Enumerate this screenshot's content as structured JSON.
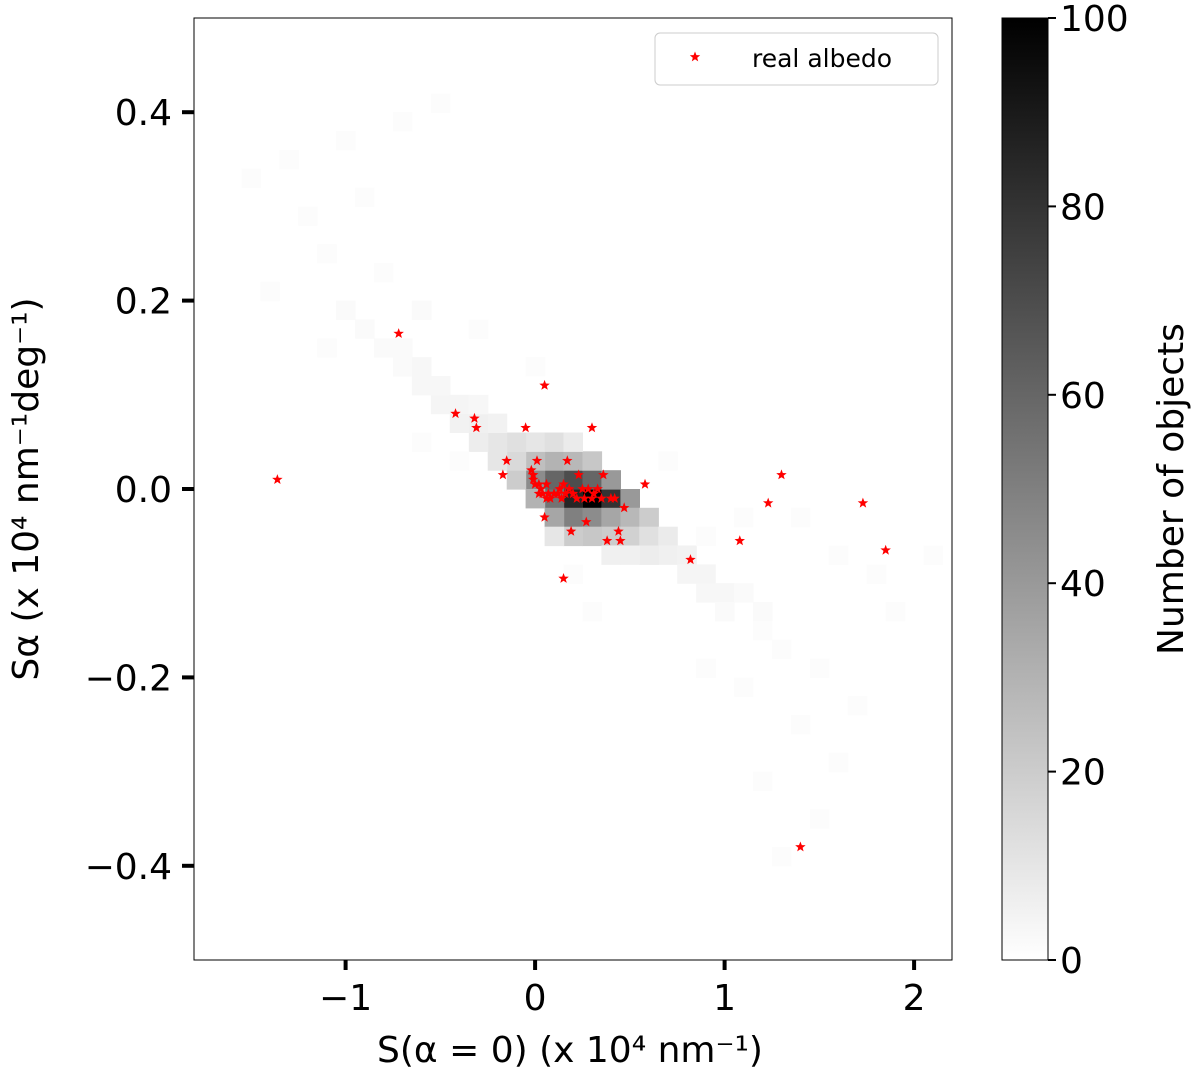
{
  "chart_data": {
    "type": "heatmap",
    "heatmap_description": "2D histogram (grayscale counts) with overlaid scatter of red star markers",
    "xlim": [
      -1.8,
      2.2
    ],
    "ylim": [
      -0.5,
      0.5
    ],
    "xticks": [
      -1,
      0,
      1,
      2
    ],
    "xtick_labels": [
      "−1",
      "0",
      "1",
      "2"
    ],
    "yticks": [
      0.4,
      0.2,
      0.0,
      -0.2,
      -0.4
    ],
    "ytick_labels": [
      "0.4",
      "0.2",
      "0.0",
      "−0.2",
      "−0.4"
    ],
    "xlabel": "S(α = 0)  (x 10⁴ nm⁻¹)",
    "ylabel": "Sα (x 10⁴ nm⁻¹deg⁻¹)",
    "colorbar": {
      "label": "Number of objects",
      "range": [
        0,
        100
      ],
      "ticks": [
        0,
        20,
        40,
        60,
        80,
        100
      ],
      "tick_labels": [
        "0",
        "20",
        "40",
        "60",
        "80",
        "100"
      ],
      "colormap": "gray_r"
    },
    "legend": {
      "placement": "upper right",
      "entries": [
        "real albedo"
      ]
    },
    "marker_color": "#ff0000",
    "histogram_bins": [
      {
        "x": 0.3,
        "y": -0.01,
        "count": 100
      },
      {
        "x": 0.2,
        "y": -0.01,
        "count": 85
      },
      {
        "x": 0.4,
        "y": -0.01,
        "count": 80
      },
      {
        "x": 0.2,
        "y": 0.01,
        "count": 70
      },
      {
        "x": 0.3,
        "y": 0.01,
        "count": 60
      },
      {
        "x": 0.1,
        "y": -0.01,
        "count": 55
      },
      {
        "x": 0.1,
        "y": 0.01,
        "count": 60
      },
      {
        "x": 0.0,
        "y": 0.01,
        "count": 45
      },
      {
        "x": 0.4,
        "y": 0.01,
        "count": 40
      },
      {
        "x": 0.2,
        "y": -0.03,
        "count": 50
      },
      {
        "x": 0.3,
        "y": -0.03,
        "count": 45
      },
      {
        "x": 0.1,
        "y": -0.03,
        "count": 35
      },
      {
        "x": 0.4,
        "y": -0.03,
        "count": 35
      },
      {
        "x": 0.5,
        "y": -0.01,
        "count": 40
      },
      {
        "x": 0.1,
        "y": 0.03,
        "count": 30
      },
      {
        "x": 0.2,
        "y": 0.03,
        "count": 28
      },
      {
        "x": 0.3,
        "y": 0.03,
        "count": 22
      },
      {
        "x": 0.0,
        "y": 0.03,
        "count": 25
      },
      {
        "x": -0.1,
        "y": 0.01,
        "count": 20
      },
      {
        "x": -0.1,
        "y": 0.03,
        "count": 15
      },
      {
        "x": -0.2,
        "y": 0.03,
        "count": 10
      },
      {
        "x": 0.0,
        "y": -0.01,
        "count": 30
      },
      {
        "x": 0.5,
        "y": -0.03,
        "count": 28
      },
      {
        "x": 0.6,
        "y": -0.03,
        "count": 20
      },
      {
        "x": 0.5,
        "y": -0.05,
        "count": 18
      },
      {
        "x": 0.4,
        "y": -0.05,
        "count": 20
      },
      {
        "x": 0.3,
        "y": -0.05,
        "count": 22
      },
      {
        "x": 0.2,
        "y": -0.05,
        "count": 20
      },
      {
        "x": 0.6,
        "y": -0.05,
        "count": 12
      },
      {
        "x": 0.1,
        "y": -0.05,
        "count": 10
      },
      {
        "x": 0.0,
        "y": 0.05,
        "count": 10
      },
      {
        "x": -0.1,
        "y": 0.05,
        "count": 12
      },
      {
        "x": -0.2,
        "y": 0.05,
        "count": 10
      },
      {
        "x": -0.3,
        "y": 0.05,
        "count": 7
      },
      {
        "x": 0.1,
        "y": 0.05,
        "count": 12
      },
      {
        "x": 0.2,
        "y": 0.05,
        "count": 8
      },
      {
        "x": -0.3,
        "y": 0.07,
        "count": 6
      },
      {
        "x": -0.4,
        "y": 0.07,
        "count": 5
      },
      {
        "x": -0.5,
        "y": 0.09,
        "count": 4
      },
      {
        "x": -0.6,
        "y": 0.11,
        "count": 3
      },
      {
        "x": -0.5,
        "y": 0.11,
        "count": 3
      },
      {
        "x": -0.7,
        "y": 0.13,
        "count": 2
      },
      {
        "x": -0.6,
        "y": 0.13,
        "count": 3
      },
      {
        "x": -0.8,
        "y": 0.15,
        "count": 2
      },
      {
        "x": -0.4,
        "y": 0.09,
        "count": 4
      },
      {
        "x": -0.2,
        "y": 0.07,
        "count": 5
      },
      {
        "x": 0.7,
        "y": -0.05,
        "count": 8
      },
      {
        "x": 0.7,
        "y": -0.07,
        "count": 6
      },
      {
        "x": 0.6,
        "y": -0.07,
        "count": 7
      },
      {
        "x": 0.8,
        "y": -0.07,
        "count": 5
      },
      {
        "x": 0.8,
        "y": -0.09,
        "count": 4
      },
      {
        "x": 0.9,
        "y": -0.09,
        "count": 4
      },
      {
        "x": 1.0,
        "y": -0.11,
        "count": 3
      },
      {
        "x": 0.9,
        "y": -0.11,
        "count": 3
      },
      {
        "x": 1.1,
        "y": -0.11,
        "count": 2
      },
      {
        "x": 1.0,
        "y": -0.13,
        "count": 2
      },
      {
        "x": 1.2,
        "y": -0.13,
        "count": 2
      },
      {
        "x": 0.5,
        "y": -0.07,
        "count": 6
      },
      {
        "x": 0.4,
        "y": -0.07,
        "count": 6
      },
      {
        "x": -0.3,
        "y": 0.09,
        "count": 3
      },
      {
        "x": -0.9,
        "y": 0.17,
        "count": 2
      },
      {
        "x": -1.0,
        "y": 0.19,
        "count": 2
      },
      {
        "x": -0.7,
        "y": 0.15,
        "count": 2
      },
      {
        "x": -0.6,
        "y": 0.19,
        "count": 2
      },
      {
        "x": -0.8,
        "y": 0.23,
        "count": 1
      },
      {
        "x": -1.1,
        "y": 0.25,
        "count": 1
      },
      {
        "x": -1.2,
        "y": 0.29,
        "count": 1
      },
      {
        "x": -0.9,
        "y": 0.31,
        "count": 1
      },
      {
        "x": -1.3,
        "y": 0.35,
        "count": 1
      },
      {
        "x": -1.0,
        "y": 0.37,
        "count": 1
      },
      {
        "x": -0.7,
        "y": 0.39,
        "count": 1
      },
      {
        "x": -0.5,
        "y": 0.41,
        "count": 1
      },
      {
        "x": -1.5,
        "y": 0.33,
        "count": 1
      },
      {
        "x": -0.3,
        "y": 0.17,
        "count": 1
      },
      {
        "x": 0.0,
        "y": 0.13,
        "count": 1
      },
      {
        "x": 1.2,
        "y": -0.15,
        "count": 1
      },
      {
        "x": 1.3,
        "y": -0.17,
        "count": 1
      },
      {
        "x": 1.5,
        "y": -0.19,
        "count": 1
      },
      {
        "x": 1.1,
        "y": -0.21,
        "count": 1
      },
      {
        "x": 1.4,
        "y": -0.25,
        "count": 1
      },
      {
        "x": 1.6,
        "y": -0.29,
        "count": 1
      },
      {
        "x": 1.2,
        "y": -0.31,
        "count": 1
      },
      {
        "x": 1.5,
        "y": -0.35,
        "count": 1
      },
      {
        "x": 1.3,
        "y": -0.39,
        "count": 1
      },
      {
        "x": 1.7,
        "y": -0.23,
        "count": 1
      },
      {
        "x": 1.9,
        "y": -0.13,
        "count": 1
      },
      {
        "x": 2.1,
        "y": -0.07,
        "count": 1
      },
      {
        "x": 1.8,
        "y": -0.09,
        "count": 1
      },
      {
        "x": 1.6,
        "y": -0.07,
        "count": 1
      },
      {
        "x": 1.4,
        "y": -0.03,
        "count": 1
      },
      {
        "x": 1.1,
        "y": -0.03,
        "count": 1
      },
      {
        "x": 0.9,
        "y": -0.05,
        "count": 1
      },
      {
        "x": 0.2,
        "y": -0.09,
        "count": 1
      },
      {
        "x": 0.3,
        "y": -0.13,
        "count": 1
      },
      {
        "x": -0.4,
        "y": 0.03,
        "count": 1
      },
      {
        "x": 0.7,
        "y": 0.03,
        "count": 1
      },
      {
        "x": -0.6,
        "y": 0.05,
        "count": 1
      },
      {
        "x": 0.9,
        "y": -0.19,
        "count": 1
      },
      {
        "x": -1.4,
        "y": 0.21,
        "count": 1
      },
      {
        "x": -1.1,
        "y": 0.15,
        "count": 1
      }
    ],
    "series": [
      {
        "name": "real albedo",
        "x": [
          -1.36,
          -0.72,
          -0.42,
          -0.32,
          -0.31,
          -0.17,
          -0.15,
          -0.05,
          -0.02,
          -0.01,
          0.01,
          0.02,
          0.03,
          0.04,
          0.05,
          0.06,
          0.07,
          0.08,
          0.1,
          0.12,
          0.13,
          0.14,
          0.15,
          0.15,
          0.16,
          0.17,
          0.18,
          0.19,
          0.2,
          0.22,
          0.23,
          0.25,
          0.26,
          0.27,
          0.28,
          0.3,
          0.31,
          0.33,
          0.35,
          0.36,
          0.38,
          0.4,
          0.42,
          0.44,
          0.45,
          0.47,
          0.58,
          0.82,
          1.08,
          1.23,
          1.3,
          1.4,
          1.73,
          1.85,
          0.05,
          0.3,
          -0.01,
          0.0,
          0.02,
          0.06
        ],
        "y": [
          0.01,
          0.165,
          0.08,
          0.075,
          0.065,
          0.015,
          0.03,
          0.065,
          0.02,
          0.01,
          0.03,
          0.005,
          0.0,
          -0.005,
          -0.03,
          0.005,
          -0.005,
          -0.01,
          -0.005,
          -0.005,
          0.0,
          -0.01,
          -0.095,
          0.005,
          -0.005,
          0.03,
          0.0,
          -0.045,
          -0.005,
          -0.01,
          0.015,
          0.0,
          -0.01,
          -0.035,
          0.0,
          0.065,
          -0.005,
          0.0,
          -0.01,
          0.015,
          -0.055,
          -0.01,
          -0.01,
          -0.045,
          -0.055,
          -0.02,
          0.005,
          -0.075,
          -0.055,
          -0.015,
          0.015,
          -0.38,
          -0.015,
          -0.065,
          0.11,
          -0.01,
          0.015,
          0.005,
          -0.005,
          -0.01
        ]
      }
    ]
  }
}
